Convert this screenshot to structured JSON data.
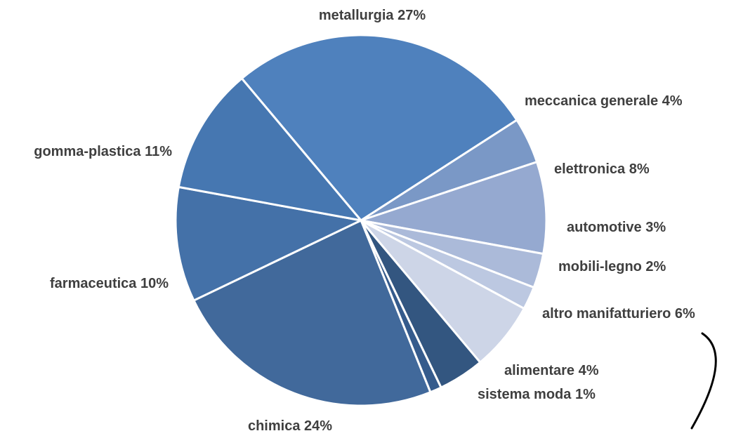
{
  "chart_data": {
    "type": "pie",
    "title": "",
    "slices": [
      {
        "label": "metallurgia 27%",
        "category": "metallurgia",
        "value": 27,
        "color": "#4f81bd"
      },
      {
        "label": "meccanica generale 4%",
        "category": "meccanica generale",
        "value": 4,
        "color": "#7a98c6"
      },
      {
        "label": "elettronica 8%",
        "category": "elettronica",
        "value": 8,
        "color": "#95a9d0"
      },
      {
        "label": "automotive 3%",
        "category": "automotive",
        "value": 3,
        "color": "#abbad9"
      },
      {
        "label": "mobili-legno 2%",
        "category": "mobili-legno",
        "value": 2,
        "color": "#bcc8e1"
      },
      {
        "label": "altro manifatturiero 6%",
        "category": "altro manifatturiero",
        "value": 6,
        "color": "#cdd5e7"
      },
      {
        "label": "alimentare 4%",
        "category": "alimentare",
        "value": 4,
        "color": "#335680"
      },
      {
        "label": "sistema moda 1%",
        "category": "sistema moda",
        "value": 1,
        "color": "#355b8c"
      },
      {
        "label": "chimica 24%",
        "category": "chimica",
        "value": 24,
        "color": "#41699b"
      },
      {
        "label": "farmaceutica 10%",
        "category": "farmaceutica",
        "value": 10,
        "color": "#4471a8"
      },
      {
        "label": "gomma-plastica 11%",
        "category": "gomma-plastica",
        "value": 11,
        "color": "#4677b1"
      }
    ]
  }
}
